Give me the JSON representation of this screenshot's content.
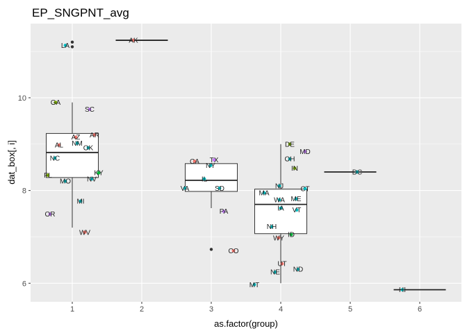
{
  "chart_data": {
    "type": "boxplot",
    "title": "EP_SNGPNT_avg",
    "xlabel": "as.factor(group)",
    "ylabel": "dat_box[, i]",
    "categories": [
      "1",
      "2",
      "3",
      "4",
      "5",
      "6"
    ],
    "x_ticks": [
      1,
      2,
      3,
      4,
      5,
      6
    ],
    "y_ticks": [
      6,
      8,
      10
    ],
    "xlim": [
      0.4,
      6.6
    ],
    "ylim": [
      5.6,
      11.6
    ],
    "grid": true,
    "boxes": [
      {
        "group": 1,
        "lower": 7.2,
        "q1": 8.28,
        "median": 8.82,
        "q3": 9.23,
        "upper": 9.9,
        "outliers": [
          11.1,
          11.2
        ]
      },
      {
        "group": 2,
        "lower": 11.24,
        "q1": 11.24,
        "median": 11.24,
        "q3": 11.24,
        "upper": 11.24,
        "outliers": []
      },
      {
        "group": 3,
        "lower": 7.62,
        "q1": 7.98,
        "median": 8.22,
        "q3": 8.58,
        "upper": 8.58,
        "outliers": [
          6.73
        ]
      },
      {
        "group": 4,
        "lower": 6.0,
        "q1": 7.07,
        "median": 7.7,
        "q3": 8.03,
        "upper": 9.0,
        "outliers": []
      },
      {
        "group": 5,
        "lower": 8.4,
        "q1": 8.4,
        "median": 8.4,
        "q3": 8.4,
        "upper": 8.4,
        "outliers": []
      },
      {
        "group": 6,
        "lower": 5.86,
        "q1": 5.86,
        "median": 5.86,
        "q3": 5.86,
        "upper": 5.86,
        "outliers": []
      }
    ],
    "points": [
      {
        "label": "LA",
        "x": 0.9,
        "y": 11.13,
        "color": "#00BFC4"
      },
      {
        "label": "GA",
        "x": 0.76,
        "y": 9.9,
        "color": "#7CAE00"
      },
      {
        "label": "SC",
        "x": 1.25,
        "y": 9.75,
        "color": "#C77CFF"
      },
      {
        "label": "AR",
        "x": 1.32,
        "y": 9.2,
        "color": "#F8766D"
      },
      {
        "label": "AZ",
        "x": 1.05,
        "y": 9.15,
        "color": "#F8766D"
      },
      {
        "label": "NM",
        "x": 1.07,
        "y": 9.02,
        "color": "#00BFC4"
      },
      {
        "label": "AL",
        "x": 0.81,
        "y": 8.98,
        "color": "#F8766D"
      },
      {
        "label": "OK",
        "x": 1.23,
        "y": 8.92,
        "color": "#00BFC4"
      },
      {
        "label": "NC",
        "x": 0.75,
        "y": 8.7,
        "color": "#00BFC4"
      },
      {
        "label": "KY",
        "x": 1.38,
        "y": 8.38,
        "color": "#00BA38"
      },
      {
        "label": "FL",
        "x": 0.65,
        "y": 8.33,
        "color": "#7CAE00"
      },
      {
        "label": "NV",
        "x": 1.28,
        "y": 8.25,
        "color": "#00BFC4"
      },
      {
        "label": "MO",
        "x": 0.9,
        "y": 8.2,
        "color": "#00BFC4"
      },
      {
        "label": "MI",
        "x": 1.12,
        "y": 7.77,
        "color": "#00BFC4"
      },
      {
        "label": "OR",
        "x": 0.68,
        "y": 7.49,
        "color": "#C77CFF"
      },
      {
        "label": "WV",
        "x": 1.18,
        "y": 7.1,
        "color": "#F8766D"
      },
      {
        "label": "AK",
        "x": 1.88,
        "y": 11.24,
        "color": "#F8766D"
      },
      {
        "label": "CA",
        "x": 2.76,
        "y": 8.63,
        "color": "#F8766D"
      },
      {
        "label": "TX",
        "x": 3.04,
        "y": 8.66,
        "color": "#C77CFF"
      },
      {
        "label": "NY",
        "x": 2.99,
        "y": 8.54,
        "color": "#00BFC4"
      },
      {
        "label": "IL",
        "x": 2.9,
        "y": 8.25,
        "color": "#00BFC4"
      },
      {
        "label": "VA",
        "x": 2.62,
        "y": 8.05,
        "color": "#00BFC4"
      },
      {
        "label": "SD",
        "x": 3.12,
        "y": 8.05,
        "color": "#00BFC4"
      },
      {
        "label": "PA",
        "x": 3.18,
        "y": 7.55,
        "color": "#C77CFF"
      },
      {
        "label": "CO",
        "x": 3.32,
        "y": 6.7,
        "color": "#F8766D"
      },
      {
        "label": "MT",
        "x": 3.62,
        "y": 5.97,
        "color": "#00BFC4"
      },
      {
        "label": "DE",
        "x": 4.13,
        "y": 9.0,
        "color": "#7CAE00"
      },
      {
        "label": "MD",
        "x": 4.35,
        "y": 8.84,
        "color": "#C77CFF"
      },
      {
        "label": "OH",
        "x": 4.13,
        "y": 8.68,
        "color": "#00BFC4"
      },
      {
        "label": "IN",
        "x": 4.2,
        "y": 8.48,
        "color": "#7CAE00"
      },
      {
        "label": "NJ",
        "x": 3.98,
        "y": 8.1,
        "color": "#00BFC4"
      },
      {
        "label": "CT",
        "x": 4.35,
        "y": 8.04,
        "color": "#00BFC4"
      },
      {
        "label": "MA",
        "x": 3.76,
        "y": 7.95,
        "color": "#00BFC4"
      },
      {
        "label": "ME",
        "x": 4.22,
        "y": 7.82,
        "color": "#00BFC4"
      },
      {
        "label": "WA",
        "x": 3.98,
        "y": 7.8,
        "color": "#00BFC4"
      },
      {
        "label": "IA",
        "x": 4.0,
        "y": 7.62,
        "color": "#00BFC4"
      },
      {
        "label": "VT",
        "x": 4.23,
        "y": 7.58,
        "color": "#00BFC4"
      },
      {
        "label": "NH",
        "x": 3.87,
        "y": 7.22,
        "color": "#00BFC4"
      },
      {
        "label": "ID",
        "x": 4.15,
        "y": 7.05,
        "color": "#00BA38"
      },
      {
        "label": "WY",
        "x": 3.97,
        "y": 6.98,
        "color": "#F8766D"
      },
      {
        "label": "UT",
        "x": 4.02,
        "y": 6.42,
        "color": "#F8766D"
      },
      {
        "label": "ND",
        "x": 4.25,
        "y": 6.3,
        "color": "#00BFC4"
      },
      {
        "label": "NE",
        "x": 3.92,
        "y": 6.24,
        "color": "#00BFC4"
      },
      {
        "label": "DC",
        "x": 5.1,
        "y": 8.4,
        "color": "#00BFC4"
      },
      {
        "label": "HI",
        "x": 5.75,
        "y": 5.86,
        "color": "#00BFC4"
      }
    ]
  }
}
